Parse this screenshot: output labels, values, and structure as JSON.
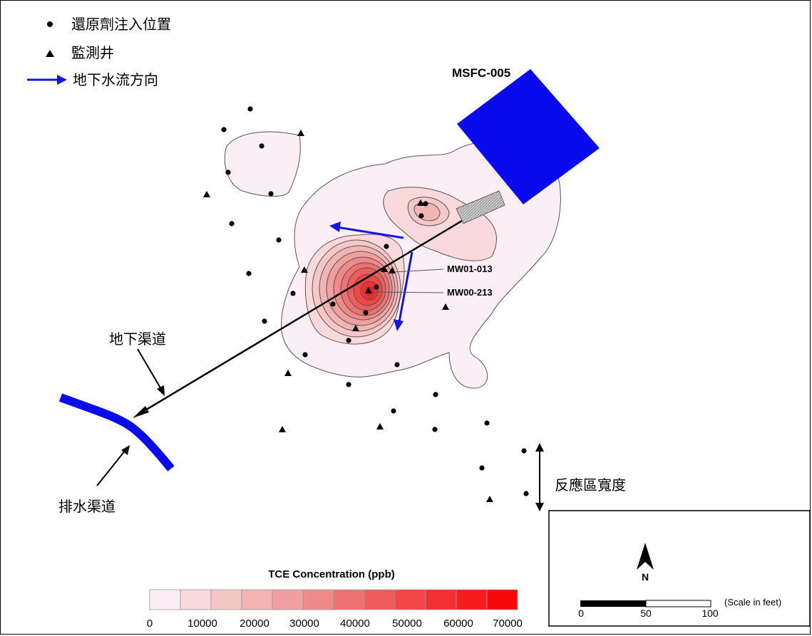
{
  "legend": {
    "injection_points": "還原劑注入位置",
    "monitoring_wells": "監測井",
    "groundwater_flow": "地下水流方向"
  },
  "site_label": "MSFC-005",
  "well_labels": [
    "MW01-013",
    "MW00-213"
  ],
  "annotations": {
    "underground_channel": "地下渠道",
    "drainage_channel": "排水渠道",
    "reaction_zone_width": "反應區寬度"
  },
  "colorbar": {
    "title": "TCE Concentration (ppb)",
    "ticks": [
      "0",
      "10000",
      "20000",
      "30000",
      "40000",
      "50000",
      "60000",
      "70000"
    ],
    "colors": [
      "#fbeff5",
      "#f9d9d9",
      "#f6c7c7",
      "#f3b4b4",
      "#f19f9f",
      "#f08989",
      "#ee7272",
      "#ef5c5c",
      "#f04646",
      "#f23030",
      "#f41c1c",
      "#f80808"
    ]
  },
  "scale": {
    "north": "N",
    "ticks": [
      "0",
      "50",
      "100"
    ],
    "unit": "(Scale in feet)"
  },
  "colors": {
    "flow_arrow": "#1515e0",
    "building": "#0a0aee",
    "drain": "#0a0aee"
  }
}
